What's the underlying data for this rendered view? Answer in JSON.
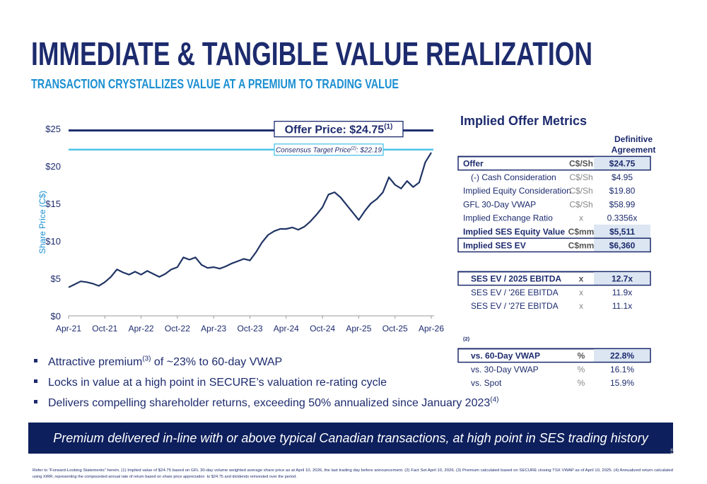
{
  "header": {
    "title": "IMMEDIATE & TANGIBLE VALUE REALIZATION",
    "subtitle": "TRANSACTION CRYSTALLIZES VALUE AT A PREMIUM TO TRADING VALUE"
  },
  "chart_data": {
    "type": "line",
    "y_label": "Share Price (C$)",
    "color": "#1f3464",
    "categories": [
      "Apr-21",
      null,
      null,
      null,
      null,
      null,
      "Oct-21",
      null,
      null,
      null,
      null,
      null,
      "Apr-22",
      null,
      null,
      null,
      null,
      null,
      "Oct-22",
      null,
      null,
      null,
      null,
      null,
      "Apr-23",
      null,
      null,
      null,
      null,
      null,
      "Oct-23",
      null,
      null,
      null,
      null,
      null,
      "Apr-24",
      null,
      null,
      null,
      null,
      null,
      "Oct-24",
      null,
      null,
      null,
      null,
      null,
      "Apr-25",
      null,
      null,
      null,
      null,
      null,
      "Oct-25",
      null,
      null,
      null,
      null,
      null,
      "Apr-26"
    ],
    "values": [
      3.8,
      4.2,
      4.6,
      4.5,
      4.3,
      4.0,
      4.5,
      5.2,
      6.2,
      5.8,
      5.5,
      5.9,
      5.5,
      6.0,
      5.6,
      5.2,
      5.6,
      6.2,
      6.5,
      7.8,
      7.5,
      7.8,
      6.8,
      6.4,
      6.5,
      6.3,
      6.6,
      7.0,
      7.3,
      7.6,
      7.4,
      8.5,
      9.8,
      10.8,
      11.3,
      11.6,
      11.6,
      11.8,
      11.5,
      11.9,
      12.6,
      13.5,
      14.5,
      16.2,
      16.5,
      15.8,
      14.8,
      13.8,
      12.8,
      14.0,
      15.0,
      15.6,
      16.5,
      18.5,
      17.5,
      17.0,
      18.0,
      17.2,
      17.8,
      20.5,
      21.8
    ],
    "ylim": [
      0,
      25
    ],
    "yticks": [
      {
        "value": 0,
        "label": "$0"
      },
      {
        "value": 5,
        "label": "$5"
      },
      {
        "value": 10,
        "label": "$10"
      },
      {
        "value": 15,
        "label": "$15"
      },
      {
        "value": 20,
        "label": "$20"
      },
      {
        "value": 25,
        "label": "$25"
      }
    ],
    "reference_lines": [
      {
        "value": 24.75,
        "label": "Offer Price: $24.75",
        "footnote": "(1)",
        "color": "#1d2b6e"
      },
      {
        "value": 22.19,
        "label": "Consensus Target Price",
        "footnote": "(2)",
        "label_after": ": $22.19",
        "color": "#4fc3e8"
      }
    ]
  },
  "metrics": {
    "title": "Implied Offer Metrics",
    "column_header": [
      "Definitive",
      "Agreement"
    ],
    "rows": [
      {
        "label": "Offer",
        "unit": "C$/Sh",
        "value": "$24.75",
        "bold": true,
        "boxed": true,
        "shaded": true
      },
      {
        "label": "(-) Cash Consideration",
        "unit": "C$/Sh",
        "value": "$4.95",
        "indent": true
      },
      {
        "label": "Implied Equity Consideration",
        "unit": "C$/Sh",
        "value": "$19.80"
      },
      {
        "label": "GFL 30-Day VWAP",
        "unit": "C$/Sh",
        "value": "$58.99"
      },
      {
        "label": "Implied Exchange Ratio",
        "unit": "x",
        "value": "0.3356x"
      },
      {
        "label": "Implied SES Equity Value",
        "unit": "C$mm",
        "value": "$5,511",
        "bold": true,
        "shaded": true
      },
      {
        "label": "Implied SES EV",
        "unit": "C$mm",
        "value": "$6,360",
        "bold": true,
        "boxed": true,
        "shaded": true
      }
    ]
  },
  "multiples": {
    "rows": [
      {
        "label": "SES EV / 2025 EBITDA",
        "unit": "x",
        "value": "12.7x",
        "bold": true,
        "boxed": true,
        "shaded": true,
        "indent": true
      },
      {
        "label": "SES EV / '26E EBITDA",
        "unit": "x",
        "value": "11.9x",
        "indent": true
      },
      {
        "label": "SES EV / '27E EBITDA",
        "unit": "x",
        "value": "11.1x",
        "indent": true
      }
    ]
  },
  "premium": {
    "title": "Premium",
    "footnote": "(2)",
    "rows": [
      {
        "label": "vs. 60-Day VWAP",
        "unit": "%",
        "value": "22.8%",
        "bold": true,
        "boxed": true,
        "shaded": true,
        "indent": true
      },
      {
        "label": "vs. 30-Day VWAP",
        "unit": "%",
        "value": "16.1%",
        "indent": true
      },
      {
        "label": "vs. Spot",
        "unit": "%",
        "value": "15.9%",
        "indent": true
      }
    ]
  },
  "bullets": [
    {
      "text": "Attractive premium",
      "footnote": "(3)",
      "text_after": " of ~23% to 60-day VWAP"
    },
    {
      "text": "Locks in value at a high point in SECURE’s valuation re-rating cycle"
    },
    {
      "text": "Delivers compelling shareholder returns, exceeding 50% annualized since January 2023",
      "footnote": "(4)"
    }
  ],
  "banner": "Premium delivered in-line with or above typical Canadian transactions, at high point in SES trading history",
  "page_number": "5",
  "footnotes": [
    "Refer to “Forward-Looking Statements” herein. (1) Implied value of $24.75 based on GFL 30-day volume weighted average share price as at April 10, 2026, the last trading day before announcement. (2) Fact Set April 10, 2026. (3) Premium calculated based on SECURE closing TSX VWAP as of April 10, 2025. (4) Annualized return calculated",
    "using XIRR, representing the compounded annual rate of return based on share price appreciation  to $24.75 and dividends reinvested over the period."
  ]
}
